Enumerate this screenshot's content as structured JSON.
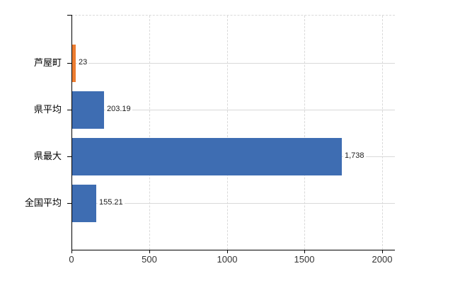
{
  "chart_data": {
    "type": "bar",
    "orientation": "horizontal",
    "title": "",
    "xlabel": "",
    "ylabel": "",
    "categories": [
      "芦屋町",
      "県平均",
      "県最大",
      "全国平均"
    ],
    "values": [
      23,
      203.19,
      1738,
      155.21
    ],
    "value_labels": [
      "23",
      "203.19",
      "1,738",
      "155.21"
    ],
    "bar_colors": [
      "#ed7d31",
      "#3e6db2",
      "#3e6db2",
      "#3e6db2"
    ],
    "xlim": [
      0,
      2000
    ],
    "xticks": [
      0,
      500,
      1000,
      1500,
      2000
    ],
    "xtick_labels": [
      "0",
      "500",
      "1000",
      "1500",
      "2000"
    ],
    "grid": "on",
    "legend": "none",
    "colors": {
      "highlight_bar": "#ed7d31",
      "default_bar": "#3e6db2",
      "gridline": "#d9d9d9",
      "axis": "#000000",
      "background": "#ffffff"
    }
  }
}
